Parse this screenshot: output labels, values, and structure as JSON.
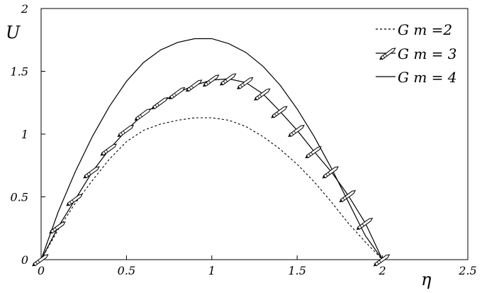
{
  "chart_data": {
    "type": "line",
    "xlabel": "η",
    "ylabel": "U",
    "xlim": [
      0,
      2.5
    ],
    "ylim": [
      0,
      2
    ],
    "xticks": [
      "0",
      "0.5",
      "1",
      "1.5",
      "2",
      "2.5"
    ],
    "yticks": [
      "0",
      "0.5",
      "1",
      "1.5",
      "2"
    ],
    "legend_position": "top-right",
    "series": [
      {
        "name": "G m =2",
        "style": "dotted",
        "color": "#000000",
        "x": [
          0,
          0.1,
          0.2,
          0.3,
          0.4,
          0.5,
          0.6,
          0.7,
          0.8,
          0.9,
          1.0,
          1.1,
          1.2,
          1.3,
          1.4,
          1.5,
          1.6,
          1.7,
          1.8,
          1.9,
          2.0
        ],
        "y": [
          0,
          0.24,
          0.45,
          0.63,
          0.8,
          0.94,
          1.03,
          1.08,
          1.11,
          1.13,
          1.13,
          1.11,
          1.06,
          0.98,
          0.88,
          0.76,
          0.62,
          0.46,
          0.29,
          0.14,
          0
        ]
      },
      {
        "name": "G m = 3",
        "style": "solid-with-pencil-markers",
        "color": "#000000",
        "x": [
          0,
          0.1,
          0.2,
          0.3,
          0.4,
          0.5,
          0.6,
          0.7,
          0.8,
          0.9,
          1.0,
          1.1,
          1.2,
          1.3,
          1.4,
          1.5,
          1.6,
          1.7,
          1.8,
          1.9,
          2.0
        ],
        "y": [
          0,
          0.26,
          0.48,
          0.7,
          0.88,
          1.03,
          1.16,
          1.25,
          1.33,
          1.39,
          1.43,
          1.44,
          1.41,
          1.32,
          1.18,
          1.03,
          0.86,
          0.7,
          0.51,
          0.29,
          0
        ]
      },
      {
        "name": "G m = 4",
        "style": "solid",
        "color": "#000000",
        "x": [
          0,
          0.1,
          0.2,
          0.3,
          0.4,
          0.5,
          0.6,
          0.7,
          0.8,
          0.9,
          1.0,
          1.1,
          1.2,
          1.3,
          1.4,
          1.5,
          1.6,
          1.7,
          1.8,
          1.9,
          2.0
        ],
        "y": [
          0,
          0.38,
          0.7,
          0.98,
          1.22,
          1.42,
          1.57,
          1.67,
          1.73,
          1.76,
          1.76,
          1.72,
          1.65,
          1.54,
          1.39,
          1.2,
          0.98,
          0.73,
          0.46,
          0.19,
          0
        ]
      }
    ]
  }
}
